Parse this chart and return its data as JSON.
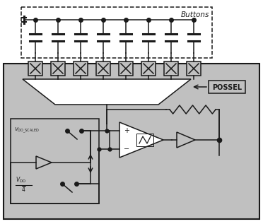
{
  "bg_color": "#c0c0c0",
  "white": "#ffffff",
  "black": "#1a1a1a",
  "title": "Buttons",
  "possel_label": "POSSEL",
  "n_buttons": 8,
  "fig_width": 3.72,
  "fig_height": 3.17
}
